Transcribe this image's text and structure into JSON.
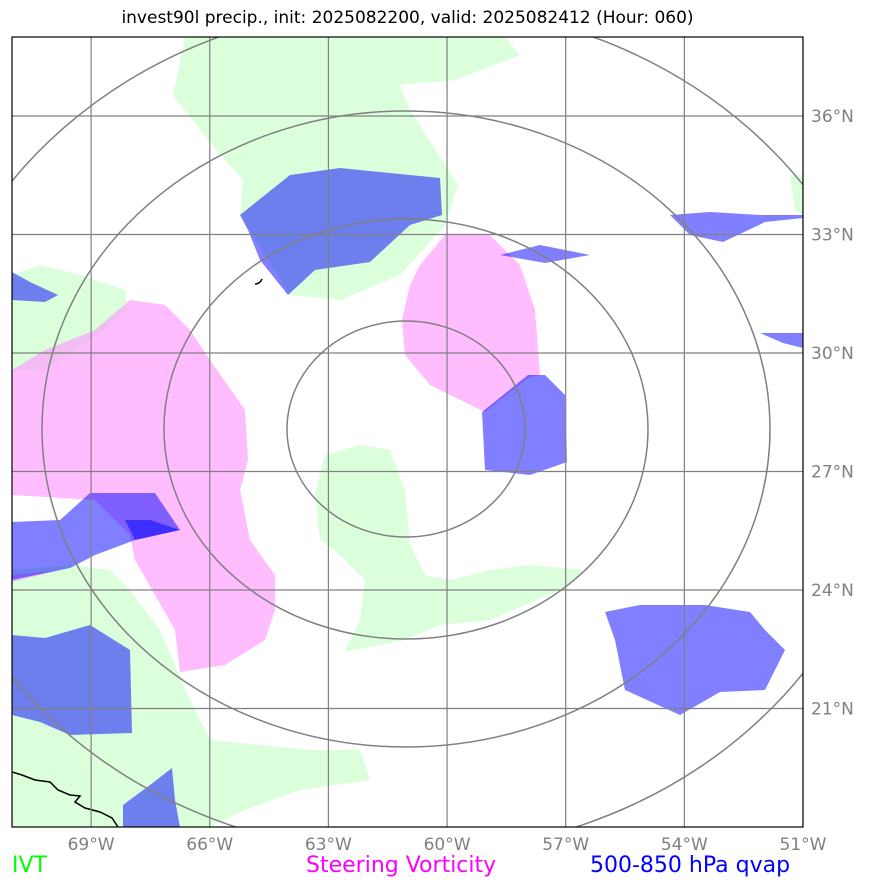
{
  "title": "invest90l precip., init: 2025082200, valid: 2025082412 (Hour: 060)",
  "map": {
    "extent": {
      "lon_min": -71,
      "lon_max": -51,
      "lat_min": 18,
      "lat_max": 38
    },
    "lat_ticks": [
      {
        "value": 36,
        "label": "36°N"
      },
      {
        "value": 33,
        "label": "33°N"
      },
      {
        "value": 30,
        "label": "30°N"
      },
      {
        "value": 27,
        "label": "27°N"
      },
      {
        "value": 24,
        "label": "24°N"
      },
      {
        "value": 21,
        "label": "21°N"
      }
    ],
    "lon_ticks": [
      {
        "value": -69,
        "label": "69°W"
      },
      {
        "value": -66,
        "label": "66°W"
      },
      {
        "value": -63,
        "label": "63°W"
      },
      {
        "value": -60,
        "label": "60°W"
      },
      {
        "value": -57,
        "label": "57°W"
      },
      {
        "value": -54,
        "label": "54°W"
      },
      {
        "value": -51,
        "label": "51°W"
      }
    ],
    "range_rings_center": {
      "lon": -60.9,
      "lat": 28.8
    },
    "colors": {
      "ivt": "#ccffcc",
      "vorticity": "#ff99ff",
      "qvap": "#0000ff",
      "grid": "#808080",
      "rings": "#808080",
      "coast": "#000000"
    }
  },
  "legend": {
    "ivt": "IVT",
    "vorticity": "Steering Vorticity",
    "qvap": "500-850 hPa qvap"
  }
}
